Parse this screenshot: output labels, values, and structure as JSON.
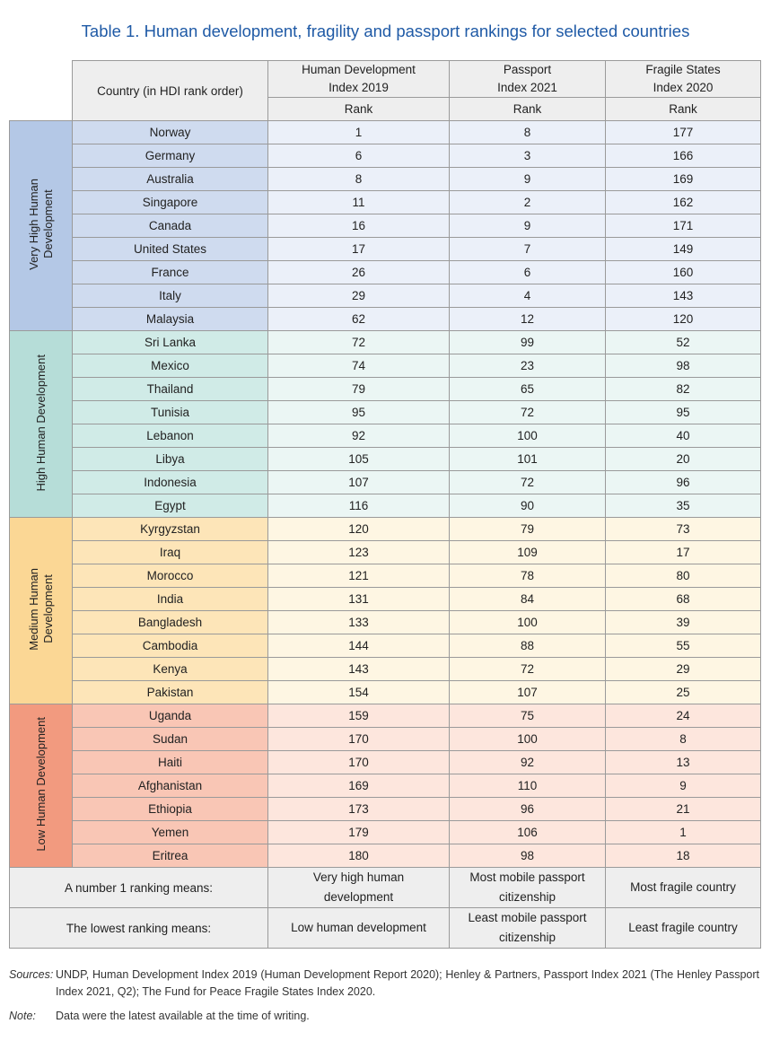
{
  "title": "Table 1. Human development, fragility and passport rankings for selected countries",
  "header": {
    "country_col": "Country (in HDI rank order)",
    "hdi_col": [
      "Human Development",
      "Index 2019"
    ],
    "passport_col": [
      "Passport",
      "Index 2021"
    ],
    "fragile_col": [
      "Fragile States",
      "Index 2020"
    ],
    "rank_label": "Rank"
  },
  "groups": [
    {
      "key": "vh",
      "label": [
        "Very High Human",
        "Development"
      ],
      "rows": [
        {
          "country": "Norway",
          "hdi": "1",
          "passport": "8",
          "fragile": "177"
        },
        {
          "country": "Germany",
          "hdi": "6",
          "passport": "3",
          "fragile": "166"
        },
        {
          "country": "Australia",
          "hdi": "8",
          "passport": "9",
          "fragile": "169"
        },
        {
          "country": "Singapore",
          "hdi": "11",
          "passport": "2",
          "fragile": "162"
        },
        {
          "country": "Canada",
          "hdi": "16",
          "passport": "9",
          "fragile": "171"
        },
        {
          "country": "United States",
          "hdi": "17",
          "passport": "7",
          "fragile": "149"
        },
        {
          "country": "France",
          "hdi": "26",
          "passport": "6",
          "fragile": "160"
        },
        {
          "country": "Italy",
          "hdi": "29",
          "passport": "4",
          "fragile": "143"
        },
        {
          "country": "Malaysia",
          "hdi": "62",
          "passport": "12",
          "fragile": "120"
        }
      ]
    },
    {
      "key": "hi",
      "label": [
        "High Human Development"
      ],
      "rows": [
        {
          "country": "Sri Lanka",
          "hdi": "72",
          "passport": "99",
          "fragile": "52"
        },
        {
          "country": "Mexico",
          "hdi": "74",
          "passport": "23",
          "fragile": "98"
        },
        {
          "country": "Thailand",
          "hdi": "79",
          "passport": "65",
          "fragile": "82"
        },
        {
          "country": "Tunisia",
          "hdi": "95",
          "passport": "72",
          "fragile": "95"
        },
        {
          "country": "Lebanon",
          "hdi": "92",
          "passport": "100",
          "fragile": "40"
        },
        {
          "country": "Libya",
          "hdi": "105",
          "passport": "101",
          "fragile": "20"
        },
        {
          "country": "Indonesia",
          "hdi": "107",
          "passport": "72",
          "fragile": "96"
        },
        {
          "country": "Egypt",
          "hdi": "116",
          "passport": "90",
          "fragile": "35"
        }
      ]
    },
    {
      "key": "me",
      "label": [
        "Medium Human",
        "Development"
      ],
      "rows": [
        {
          "country": "Kyrgyzstan",
          "hdi": "120",
          "passport": "79",
          "fragile": "73"
        },
        {
          "country": "Iraq",
          "hdi": "123",
          "passport": "109",
          "fragile": "17"
        },
        {
          "country": "Morocco",
          "hdi": "121",
          "passport": "78",
          "fragile": "80"
        },
        {
          "country": "India",
          "hdi": "131",
          "passport": "84",
          "fragile": "68"
        },
        {
          "country": "Bangladesh",
          "hdi": "133",
          "passport": "100",
          "fragile": "39"
        },
        {
          "country": "Cambodia",
          "hdi": "144",
          "passport": "88",
          "fragile": "55"
        },
        {
          "country": "Kenya",
          "hdi": "143",
          "passport": "72",
          "fragile": "29"
        },
        {
          "country": "Pakistan",
          "hdi": "154",
          "passport": "107",
          "fragile": "25"
        }
      ]
    },
    {
      "key": "lo",
      "label": [
        "Low Human Development"
      ],
      "rows": [
        {
          "country": "Uganda",
          "hdi": "159",
          "passport": "75",
          "fragile": "24"
        },
        {
          "country": "Sudan",
          "hdi": "170",
          "passport": "100",
          "fragile": "8"
        },
        {
          "country": "Haiti",
          "hdi": "170",
          "passport": "92",
          "fragile": "13"
        },
        {
          "country": "Afghanistan",
          "hdi": "169",
          "passport": "110",
          "fragile": "9"
        },
        {
          "country": "Ethiopia",
          "hdi": "173",
          "passport": "96",
          "fragile": "21"
        },
        {
          "country": "Yemen",
          "hdi": "179",
          "passport": "106",
          "fragile": "1"
        },
        {
          "country": "Eritrea",
          "hdi": "180",
          "passport": "98",
          "fragile": "18"
        }
      ]
    }
  ],
  "footer": {
    "rank1": {
      "label": "A number 1 ranking means:",
      "hdi": [
        "Very high human",
        "development"
      ],
      "passport": [
        "Most mobile passport",
        "citizenship"
      ],
      "fragile": [
        "Most fragile country"
      ]
    },
    "lowest": {
      "label": "The lowest ranking means:",
      "hdi": [
        "Low human development"
      ],
      "passport": [
        "Least mobile passport",
        "citizenship"
      ],
      "fragile": [
        "Least fragile country"
      ]
    }
  },
  "sources": {
    "label": "Sources:",
    "text": "UNDP, Human Development Index 2019 (Human Development Report 2020); Henley & Partners, Passport Index 2021 (The Henley Passport Index 2021, Q2); The Fund for Peace Fragile States Index 2020."
  },
  "note": {
    "label": "Note:",
    "text": "Data were the latest available at the time of writing."
  },
  "colors": {
    "title": "#1f5aa6",
    "very_high": "#b4c8e6",
    "high": "#b6ddd8",
    "medium": "#fbd795",
    "low": "#f29a7f"
  }
}
